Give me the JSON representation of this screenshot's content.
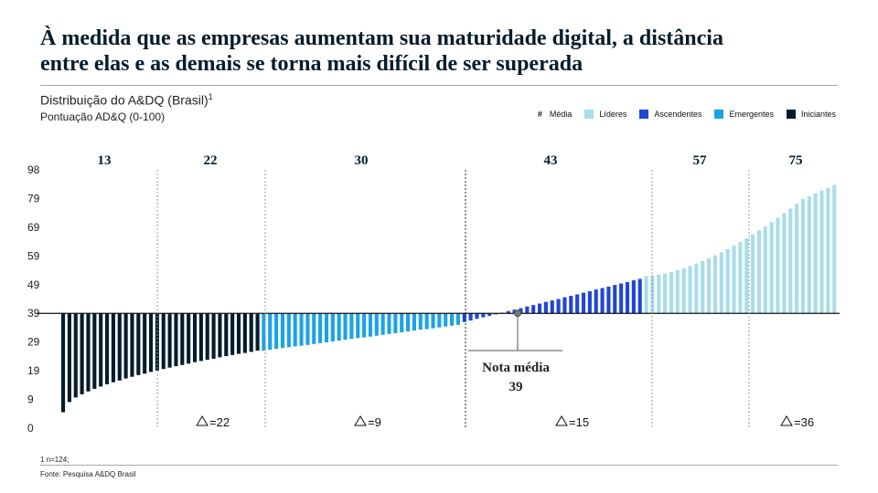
{
  "title": {
    "line1": "À medida que as empresas aumentam sua maturidade digital, a distância",
    "line2": "entre elas e as demais se torna mais difícil de ser superada"
  },
  "subtitle": "Distribuição do A&DQ (Brasil)",
  "subtitle_sup": "1",
  "subtitle2": "Pontuação AD&Q (0-100)",
  "legend": {
    "hash": "#",
    "media": "Média",
    "items": [
      {
        "label": "Líderes",
        "color": "#a9dde8"
      },
      {
        "label": "Ascendentes",
        "color": "#2046d6"
      },
      {
        "label": "Emergentes",
        "color": "#1aa3e6"
      },
      {
        "label": "Iniciantes",
        "color": "#051c2c"
      }
    ]
  },
  "footnote": "1 n=124;",
  "source": "Fonte: Pesquisa A&DQ Brasil",
  "chart_data": {
    "type": "bar",
    "baseline": 39,
    "yticks": [
      0,
      9,
      19,
      29,
      39,
      49,
      59,
      69,
      79,
      98
    ],
    "ylim": [
      0,
      98
    ],
    "groups": [
      {
        "name": "Iniciantes",
        "color": "#051c2c",
        "count": 32,
        "start": 5,
        "end": 26
      },
      {
        "name": "Emergentes",
        "color": "#1aa3e6",
        "count": 32,
        "start": 26,
        "end": 35
      },
      {
        "name": "Ascendentes",
        "color": "#2046d6",
        "count": 29,
        "start": 36,
        "end": 51
      },
      {
        "name": "Líderes",
        "color": "#a9dde8",
        "count": 31,
        "start": 52,
        "end": 88
      }
    ],
    "segments": [
      {
        "value": "13",
        "delta": ""
      },
      {
        "value": "22",
        "delta": "=22"
      },
      {
        "value": "30",
        "delta": "=9"
      },
      {
        "value": "43",
        "delta": "=15"
      },
      {
        "value": "57",
        "delta": ""
      },
      {
        "value": "75",
        "delta": "=36"
      }
    ],
    "mean_label_line1": "Nota média",
    "mean_label_line2": "39",
    "mean_value": 39
  }
}
